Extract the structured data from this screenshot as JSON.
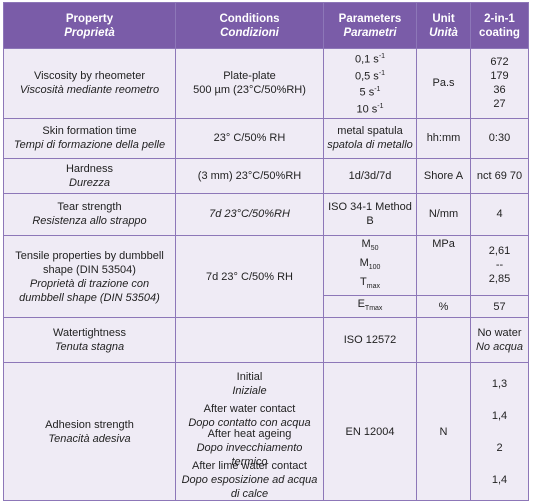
{
  "header": {
    "property": {
      "en": "Property",
      "it": "Proprietà"
    },
    "conditions": {
      "en": "Conditions",
      "it": "Condizioni"
    },
    "parameters": {
      "en": "Parameters",
      "it": "Parametri"
    },
    "unit": {
      "en": "Unit",
      "it": "Unità"
    },
    "coating": "2-in-1 coating"
  },
  "rows": [
    {
      "property": {
        "en": "Viscosity by rheometer",
        "it": "Viscosità mediante reometro"
      },
      "conditions": [
        "Plate-plate",
        "500 µm (23°C/50%RH)"
      ],
      "parameters": [
        {
          "text": "0,1 s",
          "sup": "-1"
        },
        {
          "text": "0,5 s",
          "sup": "-1"
        },
        {
          "text": "5 s",
          "sup": "-1"
        },
        {
          "text": "10 s",
          "sup": "-1"
        }
      ],
      "unit": "Pa.s",
      "values": [
        "672",
        "179",
        "36",
        "27"
      ]
    },
    {
      "property": {
        "en": "Skin formation time",
        "it": "Tempi di formazione della pelle"
      },
      "conditions": "23° C/50% RH",
      "parameters": {
        "en": "metal spatula",
        "it": "spatola di metallo"
      },
      "unit": "hh:mm",
      "value": "0:30"
    },
    {
      "property": {
        "en": "Hardness",
        "it": "Durezza"
      },
      "conditions": "(3 mm) 23°C/50%RH",
      "parameters": "1d/3d/7d",
      "unit": "Shore A",
      "value": "nct 69 70"
    },
    {
      "property": {
        "en": "Tear strength",
        "it": "Resistenza allo strappo"
      },
      "conditions": "7d 23°C/50%RH",
      "parameters": "ISO 34-1 Method B",
      "unit": "N/mm",
      "value": "4"
    },
    {
      "property": {
        "en": "Tensile properties by dumbbell shape (DIN 53504)",
        "it": "Proprietà di trazione con dumbbell shape (DIN 53504)"
      },
      "conditions": "7d 23° C/50% RH",
      "parameters": [
        {
          "text": "M",
          "sub": "50"
        },
        {
          "text": "M",
          "sub": "100"
        },
        {
          "text": "T",
          "sub": "max"
        },
        {
          "text": "E",
          "sub": "Tmax"
        }
      ],
      "units": [
        "MPa",
        "%"
      ],
      "values": [
        "2,61",
        "--",
        "2,85",
        "57"
      ]
    },
    {
      "property": {
        "en": "Watertightness",
        "it": "Tenuta stagna"
      },
      "parameters": "ISO 12572",
      "value": {
        "en": "No water",
        "it": "No acqua"
      }
    },
    {
      "property": {
        "en": "Adhesion strength",
        "it": "Tenacità adesiva"
      },
      "conditions": [
        {
          "en": "Initial",
          "it": "Iniziale"
        },
        {
          "en": "After water contact",
          "it": "Dopo contatto con acqua"
        },
        {
          "en": "After heat ageing",
          "it": "Dopo invecchiamento termico"
        },
        {
          "en": "After lime water contact",
          "it": "Dopo esposizione ad acqua di calce"
        }
      ],
      "parameters": "EN 12004",
      "unit": "N",
      "values": [
        "1,3",
        "1,4",
        "2",
        "1,4"
      ]
    }
  ]
}
